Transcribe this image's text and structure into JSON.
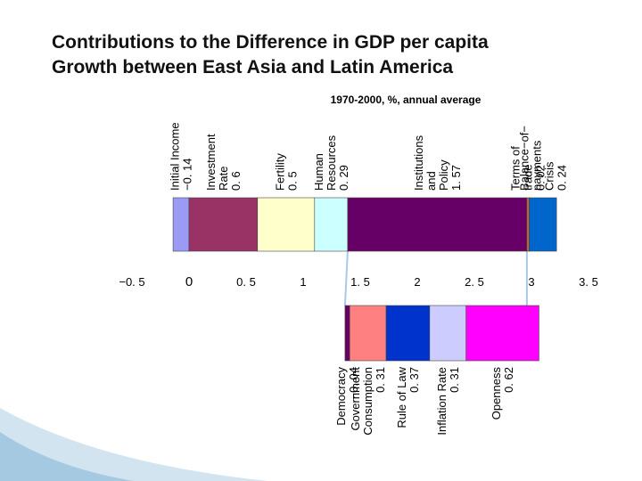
{
  "title_lines": [
    "Contributions to the Difference in GDP per capita",
    "Growth between East Asia and Latin America"
  ],
  "chart_data": {
    "type": "bar",
    "orientation": "horizontal-stacked",
    "subtitle": "1970-2000, %, annual average",
    "xlim": [
      -0.5,
      3.5
    ],
    "ticks": [
      {
        "value": -0.5,
        "label": "−0. 5"
      },
      {
        "value": 0,
        "label": "0"
      },
      {
        "value": 0.5,
        "label": "0. 5"
      },
      {
        "value": 1,
        "label": "1"
      },
      {
        "value": 1.5,
        "label": "1. 5"
      },
      {
        "value": 2,
        "label": "2"
      },
      {
        "value": 2.5,
        "label": "2. 5"
      },
      {
        "value": 3,
        "label": "3"
      },
      {
        "value": 3.5,
        "label": "3. 5"
      }
    ],
    "series": [
      {
        "name": "Initial Income",
        "value": -0.14,
        "value_label": "−0. 14",
        "label_lines": [
          "Initial Income",
          "−0. 14"
        ],
        "color": "#9b9bf5"
      },
      {
        "name": "Investment Rate",
        "value": 0.6,
        "value_label": "0. 6",
        "label_lines": [
          "Investment",
          "Rate",
          "0. 6"
        ],
        "color": "#993366"
      },
      {
        "name": "Fertility",
        "value": 0.5,
        "value_label": "0. 5",
        "label_lines": [
          "Fertility",
          "0. 5"
        ],
        "color": "#ffffcc"
      },
      {
        "name": "Human Resources",
        "value": 0.29,
        "value_label": "0. 29",
        "label_lines": [
          "Human",
          "Resources",
          "0. 29"
        ],
        "color": "#ccffff"
      },
      {
        "name": "Institutions and Policy",
        "value": 1.57,
        "value_label": "1. 57",
        "label_lines": [
          "Institutions",
          "and",
          "Policy",
          "1. 57"
        ],
        "color": "#660066"
      },
      {
        "name": "Terms of trade",
        "value": 0.02,
        "value_label": "0. 02",
        "label_lines": [
          "Terms of",
          "trade",
          "0. 02"
        ],
        "color": "#cc6633"
      },
      {
        "name": "Balance-of-payments Crisis",
        "value": 0.24,
        "value_label": "0. 24",
        "label_lines": [
          "Balance−of−",
          "payments",
          "Crisis",
          "0. 24"
        ],
        "color": "#0066cc"
      }
    ],
    "breakdown_of": "Institutions and Policy",
    "breakdown": [
      {
        "name": "Democracy",
        "value": -0.04,
        "value_label": "−0. 04",
        "label_lines": [
          "Democracy",
          "−0. 04"
        ],
        "color": "#660066"
      },
      {
        "name": "Government Consumption",
        "value": 0.31,
        "value_label": "0. 31",
        "label_lines": [
          "Government",
          "Consumption",
          "0. 31"
        ],
        "color": "#ff8080"
      },
      {
        "name": "Rule of Law",
        "value": 0.37,
        "value_label": "0. 37",
        "label_lines": [
          "Rule of Law",
          "0. 37"
        ],
        "color": "#0033cc"
      },
      {
        "name": "Inflation Rate",
        "value": 0.31,
        "value_label": "0. 31",
        "label_lines": [
          "Inflation Rate",
          "0. 31"
        ],
        "color": "#ccccff"
      },
      {
        "name": "Openness",
        "value": 0.62,
        "value_label": "0. 62",
        "label_lines": [
          "Openness",
          "0. 62"
        ],
        "color": "#ff00ff"
      }
    ]
  },
  "colors": {
    "connector": "#aac8e8",
    "corner_decoration": "#7fb3d5"
  }
}
